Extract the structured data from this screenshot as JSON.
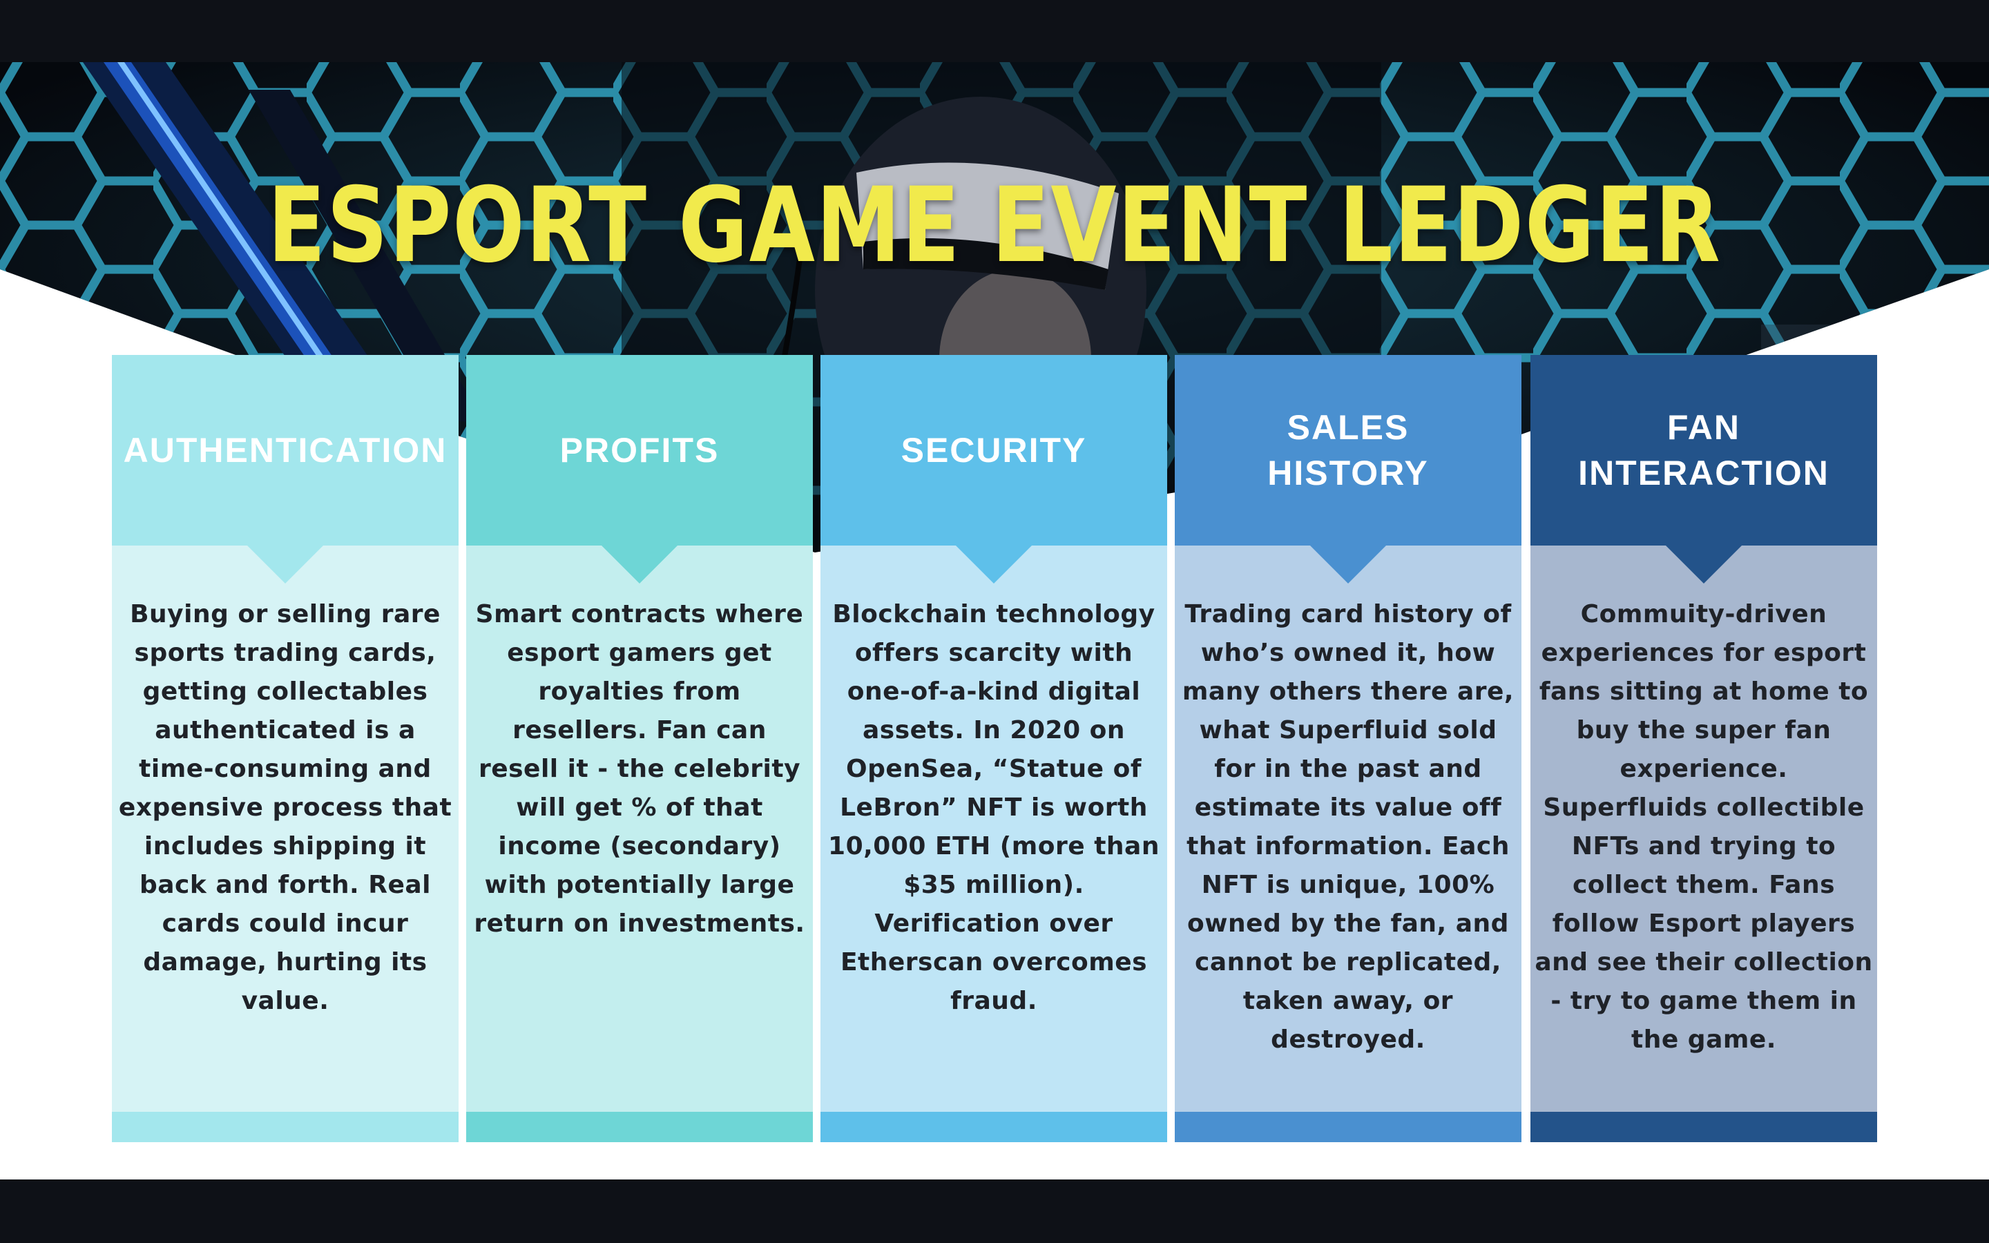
{
  "title": "ESPORT GAME EVENT LEDGER",
  "colors": {
    "title": "#f1ea4c",
    "background_dark": "#0e1117",
    "hex_glow": "#36b4d6"
  },
  "columns": [
    {
      "heading": "AUTHENTICATION",
      "body": "Buying or selling rare sports trading cards, getting collectables authenticated is a time-consuming and expensive process that includes shipping it back and forth. Real cards could incur damage, hurting its value.",
      "head_color": "#a3e7ed",
      "body_color": "#d6f3f5"
    },
    {
      "heading": "PROFITS",
      "body": "Smart contracts where esport gamers get royalties from resellers.  Fan can resell it - the celebrity will get % of that income (secondary) with potentially large return on investments.",
      "head_color": "#6ed6d6",
      "body_color": "#c3eeee"
    },
    {
      "heading": "SECURITY",
      "body": "Blockchain technology offers scarcity with one-of-a-kind digital assets. In 2020 on OpenSea, “Statue of LeBron” NFT is worth 10,000 ETH (more than $35 million). Verification over Etherscan overcomes fraud.",
      "head_color": "#5ec0ea",
      "body_color": "#bfe5f6"
    },
    {
      "heading": "SALES HISTORY",
      "body": "Trading card history of who’s owned it, how many others there are, what Superfluid sold for in the past and estimate its value off that information. Each NFT is unique, 100% owned by the fan, and cannot be replicated, taken away, or destroyed.",
      "head_color": "#4a90d0",
      "body_color": "#b5cfe8"
    },
    {
      "heading": "FAN INTERACTION",
      "body": "Commuity-driven experiences for esport fans sitting at home to buy the super fan experience.  Superfluids collectible NFTs and trying to collect them. Fans follow Esport players and see their collection - try to game them in the game.",
      "head_color": "#23538a",
      "body_color": "#a7b7cf"
    }
  ]
}
